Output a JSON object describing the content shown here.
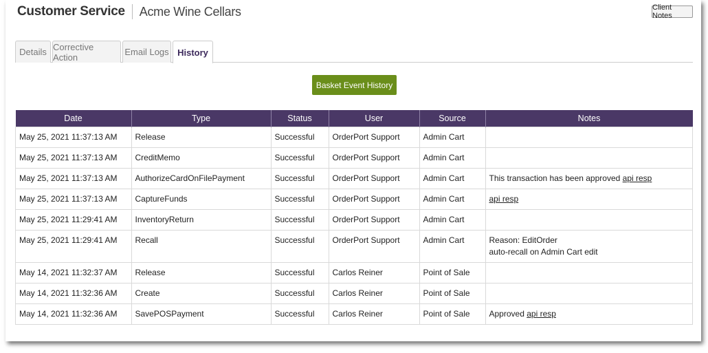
{
  "header": {
    "title": "Customer Service",
    "subtitle": "Acme Wine Cellars",
    "client_notes_label": "Client Notes"
  },
  "tabs": [
    {
      "label": "Details",
      "active": false
    },
    {
      "label": "Corrective Action",
      "active": false
    },
    {
      "label": "Email Logs",
      "active": false
    },
    {
      "label": "History",
      "active": true
    }
  ],
  "basket_button_label": "Basket Event History",
  "table": {
    "columns": [
      "Date",
      "Type",
      "Status",
      "User",
      "Source",
      "Notes"
    ],
    "rows": [
      {
        "date": "May 25, 2021 11:37:13 AM",
        "type": "Release",
        "status": "Successful",
        "user": "OrderPort Support",
        "source": "Admin Cart",
        "notes": "",
        "notes_line2": "",
        "link": ""
      },
      {
        "date": "May 25, 2021 11:37:13 AM",
        "type": "CreditMemo",
        "status": "Successful",
        "user": "OrderPort Support",
        "source": "Admin Cart",
        "notes": "",
        "notes_line2": "",
        "link": ""
      },
      {
        "date": "May 25, 2021 11:37:13 AM",
        "type": "AuthorizeCardOnFilePayment",
        "status": "Successful",
        "user": "OrderPort Support",
        "source": "Admin Cart",
        "notes": "This transaction has been approved",
        "notes_line2": "",
        "link": "api resp"
      },
      {
        "date": "May 25, 2021 11:37:13 AM",
        "type": "CaptureFunds",
        "status": "Successful",
        "user": "OrderPort Support",
        "source": "Admin Cart",
        "notes": "",
        "notes_line2": "",
        "link": "api resp"
      },
      {
        "date": "May 25, 2021 11:29:41 AM",
        "type": "InventoryReturn",
        "status": "Successful",
        "user": "OrderPort Support",
        "source": "Admin Cart",
        "notes": "",
        "notes_line2": "",
        "link": ""
      },
      {
        "date": "May 25, 2021 11:29:41 AM",
        "type": "Recall",
        "status": "Successful",
        "user": "OrderPort Support",
        "source": "Admin Cart",
        "notes": "Reason: EditOrder",
        "notes_line2": "auto-recall on Admin Cart edit",
        "link": ""
      },
      {
        "date": "May 14, 2021 11:32:37 AM",
        "type": "Release",
        "status": "Successful",
        "user": "Carlos Reiner",
        "source": "Point of Sale",
        "notes": "",
        "notes_line2": "",
        "link": ""
      },
      {
        "date": "May 14, 2021 11:32:36 AM",
        "type": "Create",
        "status": "Successful",
        "user": "Carlos Reiner",
        "source": "Point of Sale",
        "notes": "",
        "notes_line2": "",
        "link": ""
      },
      {
        "date": "May 14, 2021 11:32:36 AM",
        "type": "SavePOSPayment",
        "status": "Successful",
        "user": "Carlos Reiner",
        "source": "Point of Sale",
        "notes": "Approved",
        "notes_line2": "",
        "link": "api resp"
      }
    ]
  }
}
